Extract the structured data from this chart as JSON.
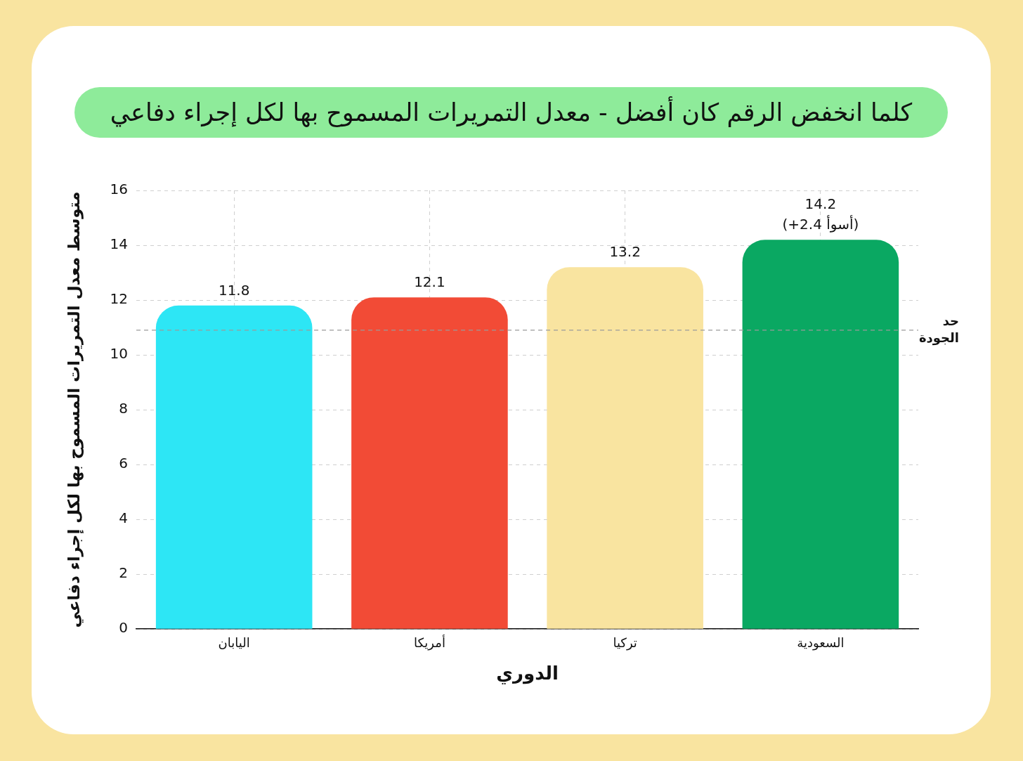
{
  "chart_data": {
    "type": "bar",
    "title": "كلما انخفض الرقم كان أفضل - معدل التمريرات المسموح بها لكل إجراء دفاعي",
    "xlabel": "الدوري",
    "ylabel": "متوسط معدل التمريرات المسموح بها لكل إجراء دفاعي",
    "categories": [
      "اليابان",
      "أمريكا",
      "تركيا",
      "السعودية"
    ],
    "values": [
      11.8,
      12.1,
      13.2,
      14.2
    ],
    "colors": [
      "#2de6f5",
      "#f24b36",
      "#f9e4a0",
      "#0aa862"
    ],
    "ylim": [
      0,
      16
    ],
    "yticks": [
      0,
      2,
      4,
      6,
      8,
      10,
      12,
      14,
      16
    ],
    "grid": true,
    "data_labels": true,
    "ref_lines": [
      {
        "axis": "y",
        "value": 10.9,
        "label": "حد الجودة",
        "color": "#9a9a9a",
        "line_style": "dashed"
      }
    ],
    "annotations": [
      {
        "text": "(+2.4 أسوأ)",
        "x": "السعودية",
        "y": 14.2
      }
    ]
  }
}
